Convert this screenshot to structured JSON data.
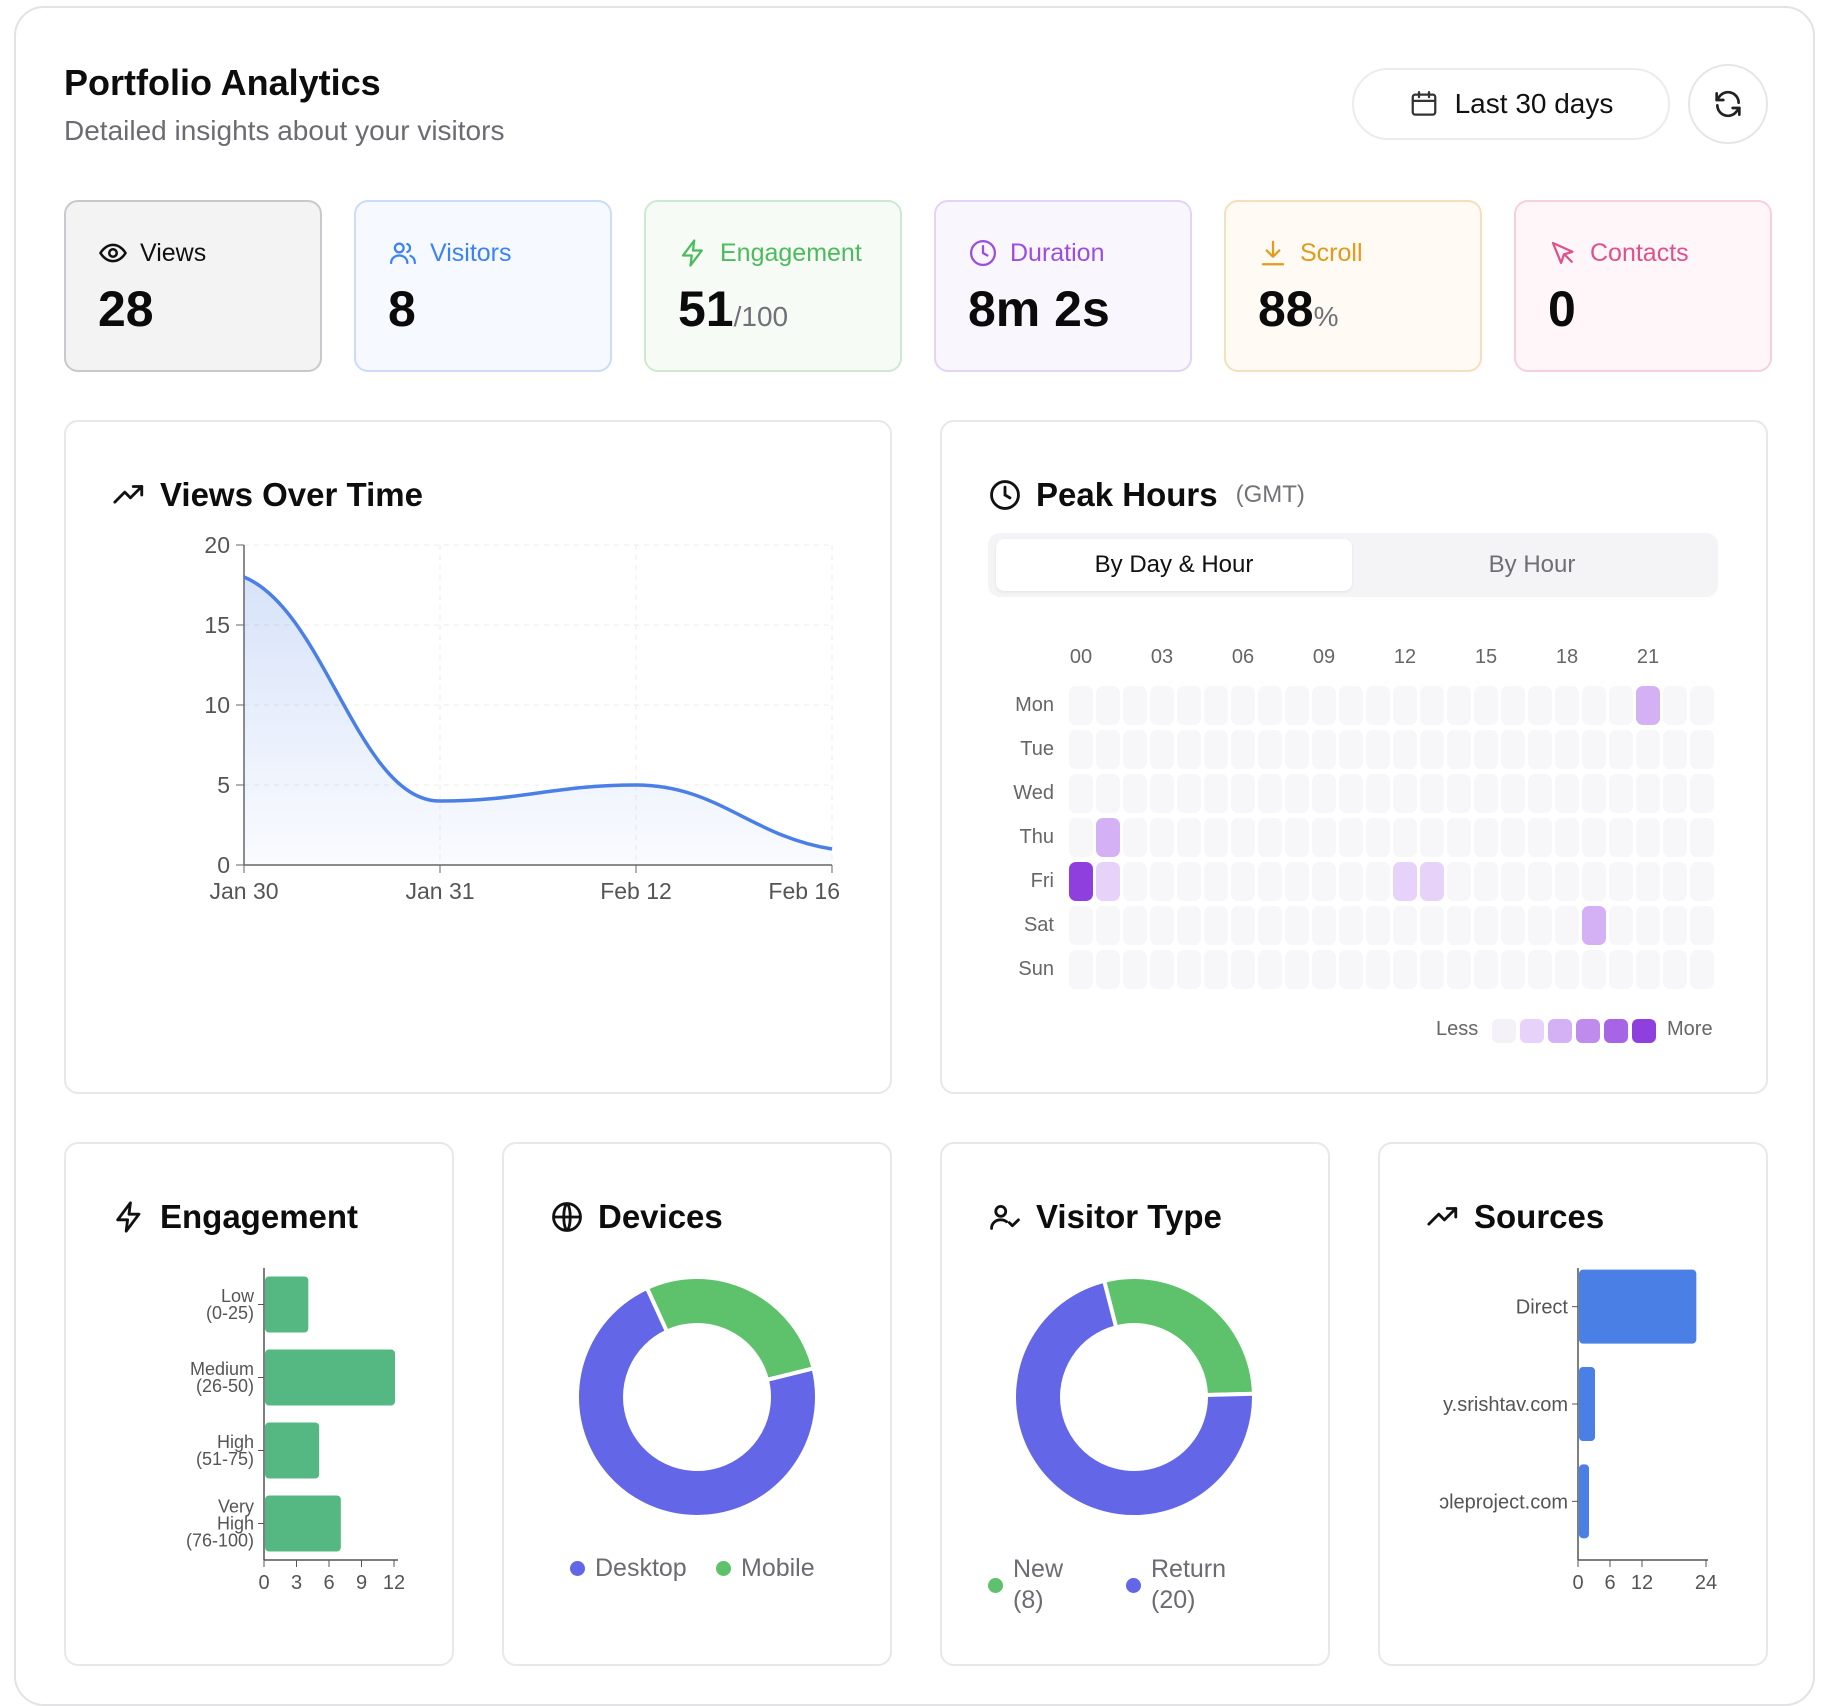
{
  "header": {
    "title": "Portfolio Analytics",
    "subtitle": "Detailed insights about your visitors",
    "range_label": "Last 30 days"
  },
  "colors": {
    "views": "#111111",
    "visitors": "#3b82f6",
    "engagement": "#4cbb5c",
    "duration": "#9b4de0",
    "scroll": "#e49a1a",
    "contacts": "#e0508a",
    "line": "#4a7fe6",
    "heat": "#9b4de0",
    "bar_green": "#55b882",
    "bar_blue": "#4a7fe6",
    "desktop": "#6366e6",
    "mobile": "#5ec16b"
  },
  "stats": [
    {
      "key": "views",
      "label": "Views",
      "value": "28",
      "unit": ""
    },
    {
      "key": "visitors",
      "label": "Visitors",
      "value": "8",
      "unit": ""
    },
    {
      "key": "engagement",
      "label": "Engagement",
      "value": "51",
      "unit": "/100"
    },
    {
      "key": "duration",
      "label": "Duration",
      "value": "8m 2s",
      "unit": ""
    },
    {
      "key": "scroll",
      "label": "Scroll",
      "value": "88",
      "unit": "%"
    },
    {
      "key": "contacts",
      "label": "Contacts",
      "value": "0",
      "unit": ""
    }
  ],
  "views_card": {
    "title": "Views Over Time"
  },
  "peak_card": {
    "title": "Peak Hours",
    "tz": "(GMT)",
    "tab_active": "By Day & Hour",
    "tab_inactive": "By Hour",
    "hour_labels": [
      "00",
      "03",
      "06",
      "09",
      "12",
      "15",
      "18",
      "21"
    ],
    "days": [
      "Mon",
      "Tue",
      "Wed",
      "Thu",
      "Fri",
      "Sat",
      "Sun"
    ],
    "legend_less": "Less",
    "legend_more": "More",
    "active_cells": [
      {
        "day": 0,
        "hour": 21,
        "level": 2
      },
      {
        "day": 3,
        "hour": 1,
        "level": 2
      },
      {
        "day": 4,
        "hour": 0,
        "level": 5
      },
      {
        "day": 4,
        "hour": 1,
        "level": 1
      },
      {
        "day": 4,
        "hour": 12,
        "level": 1
      },
      {
        "day": 4,
        "hour": 13,
        "level": 1
      },
      {
        "day": 5,
        "hour": 19,
        "level": 2
      }
    ]
  },
  "engagement_card": {
    "title": "Engagement"
  },
  "devices_card": {
    "title": "Devices",
    "legend": [
      "Desktop",
      "Mobile"
    ]
  },
  "visitor_card": {
    "title": "Visitor Type",
    "legend": [
      {
        "label": "New",
        "count": "(8)"
      },
      {
        "label": "Return",
        "count": "(20)"
      }
    ]
  },
  "sources_card": {
    "title": "Sources"
  },
  "chart_data": [
    {
      "id": "views-over-time",
      "type": "area",
      "title": "Views Over Time",
      "x": [
        "Jan 30",
        "Jan 31",
        "Feb 12",
        "Feb 16"
      ],
      "values": [
        18,
        4,
        5,
        1
      ],
      "ylim": [
        0,
        20
      ],
      "yticks": [
        "0",
        "5",
        "10",
        "15",
        "20"
      ],
      "grid": true
    },
    {
      "id": "engagement",
      "type": "bar",
      "orientation": "horizontal",
      "title": "Engagement",
      "categories": [
        [
          "Low",
          "(0-25)"
        ],
        [
          "Medium",
          "(26-50)"
        ],
        [
          "High",
          "(51-75)"
        ],
        [
          "Very",
          "High",
          "(76-100)"
        ]
      ],
      "values": [
        4,
        12,
        5,
        7
      ],
      "xlim": [
        0,
        12
      ],
      "xticks": [
        "0",
        "3",
        "6",
        "9",
        "12"
      ]
    },
    {
      "id": "devices",
      "type": "pie",
      "title": "Devices",
      "labels": [
        "Desktop",
        "Mobile"
      ],
      "values": [
        72,
        28
      ],
      "donut": true
    },
    {
      "id": "visitor-type",
      "type": "pie",
      "title": "Visitor Type",
      "labels": [
        "New",
        "Return"
      ],
      "values": [
        8,
        20
      ],
      "donut": true
    },
    {
      "id": "sources",
      "type": "bar",
      "orientation": "horizontal",
      "title": "Sources",
      "categories": [
        "Direct",
        "y.srishtav.com",
        "ɔleproject.com"
      ],
      "values": [
        22,
        3,
        1
      ],
      "xlim": [
        0,
        24
      ],
      "xticks": [
        "0",
        "6",
        "12",
        "24"
      ]
    }
  ]
}
